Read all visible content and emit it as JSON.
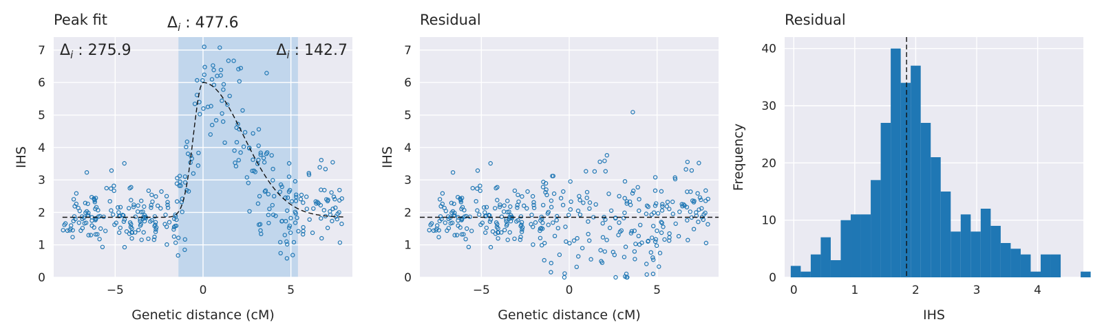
{
  "colors": {
    "background": "#eaeaf2",
    "marker": "#1f77b4",
    "bar": "#1f77b4",
    "band": "#9ec5e8",
    "reference_line": "#111111",
    "text": "#262626"
  },
  "chart_data": [
    {
      "type": "scatter",
      "title": "Peak fit",
      "xlabel": "Genetic distance (cM)",
      "ylabel": "IHS",
      "xlim": [
        -8.5,
        8.5
      ],
      "ylim": [
        0,
        7.4
      ],
      "xticks": [
        -5,
        0,
        5
      ],
      "xtick_labels": [
        "−5",
        "0",
        "5"
      ],
      "yticks": [
        0,
        1,
        2,
        3,
        4,
        5,
        6,
        7
      ],
      "grid": true,
      "marker": "hollow-circle",
      "point_count": 360,
      "x_range": [
        -8,
        8
      ],
      "baseline": 1.85,
      "peak": {
        "center": 0,
        "height": 6.0,
        "sd_left": 0.55,
        "sd_right": 2.3
      },
      "band": {
        "x_start": -1.4,
        "x_end": 5.4
      },
      "annotations": [
        {
          "label": "Δ",
          "sub": "i",
          "value": " : 477.6",
          "position": "above-band"
        },
        {
          "label": "Δ",
          "sub": "i",
          "value": " : 275.9",
          "position": "top-left"
        },
        {
          "label": "Δ",
          "sub": "i",
          "value": " : 142.7",
          "position": "top-right"
        }
      ],
      "fit_line": "dashed"
    },
    {
      "type": "scatter",
      "title": "Residual",
      "xlabel": "Genetic distance (cM)",
      "ylabel": "IHS",
      "xlim": [
        -8.5,
        8.5
      ],
      "ylim": [
        0,
        7.4
      ],
      "xticks": [
        -5,
        0,
        5
      ],
      "xtick_labels": [
        "−5",
        "0",
        "5"
      ],
      "yticks": [
        0,
        1,
        2,
        3,
        4,
        5,
        6,
        7
      ],
      "grid": true,
      "marker": "hollow-circle",
      "point_count": 360,
      "x_range": [
        -8,
        8
      ],
      "reference_line": {
        "y": 1.85,
        "style": "dashed"
      }
    },
    {
      "type": "bar",
      "title": "Residual",
      "xlabel": "IHS",
      "ylabel": "Frequency",
      "xlim": [
        -0.15,
        4.75
      ],
      "ylim": [
        0,
        42
      ],
      "xticks": [
        0,
        1,
        2,
        3,
        4
      ],
      "yticks": [
        0,
        10,
        20,
        30,
        40
      ],
      "grid": true,
      "bin_start": -0.05,
      "bin_width": 0.164,
      "values": [
        2,
        1,
        4,
        7,
        3,
        10,
        11,
        11,
        17,
        27,
        40,
        34,
        37,
        27,
        21,
        15,
        8,
        11,
        8,
        12,
        9,
        6,
        5,
        4,
        1,
        4,
        4,
        0,
        0,
        1
      ],
      "reference_line": {
        "x": 1.85,
        "style": "dashed"
      }
    }
  ]
}
